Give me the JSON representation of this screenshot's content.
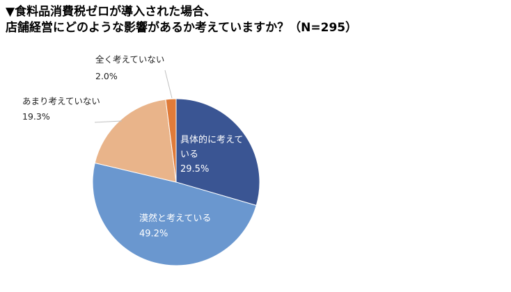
{
  "title": {
    "line1": "▼食料品消費税ゼロが導入された場合、",
    "line2": "店舗経営にどのような影響があるか考えていますか？（N=295）"
  },
  "chart_data": {
    "type": "pie",
    "slices": [
      {
        "label_lines": [
          "具体的に考えて",
          "いる"
        ],
        "value": 29.5,
        "value_label": "29.5%",
        "color": "#3a5593"
      },
      {
        "label_lines": [
          "漠然と考えている"
        ],
        "value": 49.2,
        "value_label": "49.2%",
        "color": "#6a97cf"
      },
      {
        "label_lines": [
          "あまり考えていない"
        ],
        "value": 19.3,
        "value_label": "19.3%",
        "color": "#e9b48a"
      },
      {
        "label_lines": [
          "全く考えていない"
        ],
        "value": 2.0,
        "value_label": "2.0%",
        "color": "#e07b39"
      }
    ],
    "start_angle_deg": 0,
    "direction": "clockwise"
  }
}
